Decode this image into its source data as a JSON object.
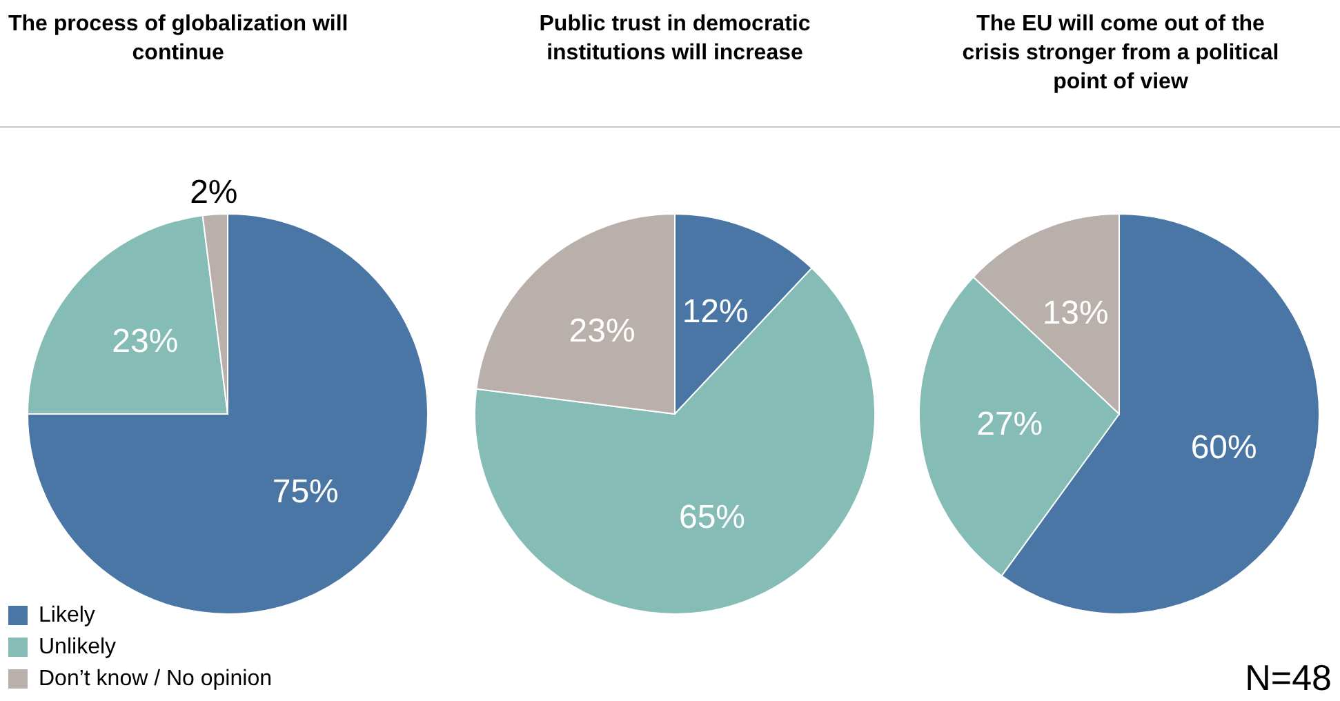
{
  "chart_data": [
    {
      "type": "pie",
      "title": "The process of globalization will continue",
      "categories": [
        "Likely",
        "Unlikely",
        "Don’t know / No opinion"
      ],
      "values": [
        75,
        23,
        2
      ],
      "value_labels": [
        "75%",
        "23%",
        "2%"
      ],
      "colors": [
        "#4a76a5",
        "#86bcb6",
        "#b9b0ab"
      ],
      "legend": "bottom left"
    },
    {
      "type": "pie",
      "title": "Public trust in democratic institutions will increase",
      "categories": [
        null,
        null,
        null
      ],
      "values": [
        12,
        65,
        23
      ],
      "value_labels": [
        "12%",
        "65%",
        "23%"
      ],
      "colors": [
        "#4a76a5",
        "#86bcb6",
        "#b9b0ab"
      ]
    },
    {
      "type": "pie",
      "title": "The EU will come out of the crisis stronger from a political point of view",
      "categories": [
        null,
        null,
        null
      ],
      "values": [
        60,
        27,
        13
      ],
      "value_labels": [
        "60%",
        "27%",
        "13%"
      ],
      "colors": [
        "#4a76a5",
        "#86bcb6",
        "#b9b0ab"
      ],
      "annotations": [
        "N=48"
      ]
    }
  ]
}
